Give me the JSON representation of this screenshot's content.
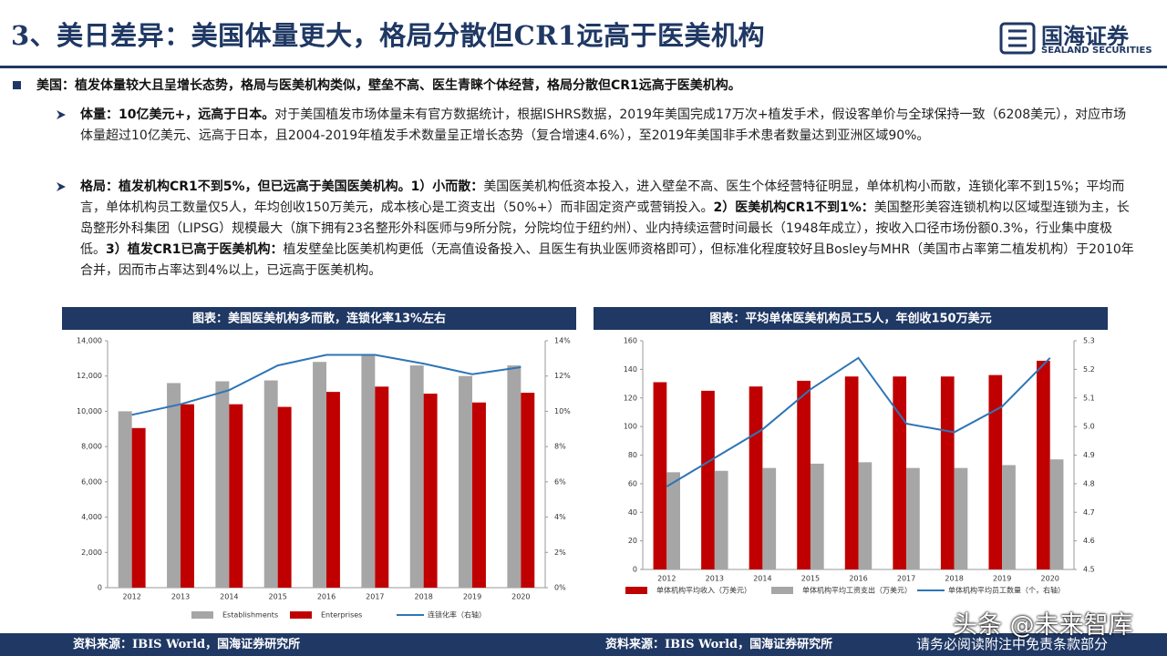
{
  "header": {
    "title": "3、美日差异：美国体量更大，格局分散但CR1远高于医美机构",
    "logo_name": "国海证券",
    "logo_sub": "SEALAND SECURITIES"
  },
  "bullets": [
    {
      "segments": [
        {
          "text": "美国：植发体量较大且呈增长态势，格局与医美机构类似，壁垒不高、医生青睐个体经营，格局分散但CR1远高于医美机构。",
          "bold": true
        }
      ]
    },
    {
      "segments": [
        {
          "text": "体量：10亿美元+，远高于日本。",
          "bold": true
        },
        {
          "text": "对于美国植发市场体量未有官方数据统计，根据ISHRS数据，2019年美国完成17万次+植发手术，假设客单价与全球保持一致（6208美元），对应市场体量超过10亿美元、远高于日本，且2004-2019年植发手术数量呈正增长态势（复合增速4.6%），至2019年美国非手术患者数量达到亚洲区域90%。",
          "bold": false
        }
      ]
    },
    {
      "segments": [
        {
          "text": "格局：植发机构CR1不到5%，但已远高于美国医美机构。1）小而散：",
          "bold": true
        },
        {
          "text": "美国医美机构低资本投入，进入壁垒不高、医生个体经营特征明显，单体机构小而散，连锁化率不到15%；平均而言，单体机构员工数量仅5人，年均创收150万美元，成本核心是工资支出（50%+）而非固定资产或营销投入。",
          "bold": false
        },
        {
          "text": "2）医美机构CR1不到1%：",
          "bold": true
        },
        {
          "text": "美国整形美容连锁机构以区域型连锁为主，长岛整形外科集团（LIPSG）规模最大（旗下拥有23名整形外科医师与9所分院，分院均位于纽约州）、业内持续运营时间最长（1948年成立），按收入口径市场份额0.3%，行业集中度极低。",
          "bold": false
        },
        {
          "text": "3）植发CR1已高于医美机构：",
          "bold": true
        },
        {
          "text": "植发壁垒比医美机构更低（无高值设备投入、且医生有执业医师资格即可），但标准化程度较好且Bosley与MHR（美国市占率第二植发机构）于2010年合并，因而市占率达到4%以上，已远高于医美机构。",
          "bold": false
        }
      ]
    }
  ],
  "chart_data": [
    {
      "type": "combo",
      "title": "图表：美国医美机构多而散，连锁化率13%左右",
      "categories": [
        "2012",
        "2013",
        "2014",
        "2015",
        "2016",
        "2017",
        "2018",
        "2019",
        "2020"
      ],
      "series": [
        {
          "name": "Establishments",
          "color": "#a6a6a6",
          "values": [
            10000,
            11600,
            11700,
            11750,
            12800,
            13200,
            12600,
            12000,
            12600
          ]
        },
        {
          "name": "Enterprises",
          "color": "#c00000",
          "values": [
            9050,
            10400,
            10400,
            10250,
            11100,
            11400,
            11000,
            10500,
            11050
          ]
        },
        {
          "name": "连锁化率（右轴）",
          "color": "#2e75b6",
          "axis": "y2",
          "values": [
            9.8,
            10.4,
            11.2,
            12.6,
            13.2,
            13.2,
            12.7,
            12.1,
            12.5
          ]
        }
      ],
      "ylim": [
        0,
        14000
      ],
      "yticks": [
        0,
        {
          "value": 2000,
          "label": "2,000"
        },
        {
          "value": 4000,
          "label": "4,000"
        },
        {
          "value": 6000,
          "label": "6,000"
        },
        {
          "value": 8000,
          "label": "8,000"
        },
        {
          "value": 10000,
          "label": "10,000"
        },
        {
          "value": 12000,
          "label": "12,000"
        },
        {
          "value": 14000,
          "label": "14,000"
        }
      ],
      "y2lim": [
        0,
        14
      ],
      "y2ticks": [
        {
          "value": 0,
          "label": "0%"
        },
        {
          "value": 2,
          "label": "2%"
        },
        {
          "value": 4,
          "label": "4%"
        },
        {
          "value": 6,
          "label": "6%"
        },
        {
          "value": 8,
          "label": "8%"
        },
        {
          "value": 10,
          "label": "10%"
        },
        {
          "value": 12,
          "label": "12%"
        },
        {
          "value": 14,
          "label": "14%"
        }
      ],
      "source": "资料来源：IBIS World，国海证券研究所"
    },
    {
      "type": "combo",
      "title": "图表：平均单体医美机构员工5人，年创收150万美元",
      "categories": [
        "2012",
        "2013",
        "2014",
        "2015",
        "2016",
        "2017",
        "2018",
        "2019",
        "2020"
      ],
      "series": [
        {
          "name": "单体机构平均收入（万美元）",
          "color": "#c00000",
          "values": [
            131,
            125,
            128,
            132,
            135,
            135,
            135,
            136,
            146
          ]
        },
        {
          "name": "单体机构平均工资支出（万美元）",
          "color": "#a6a6a6",
          "values": [
            68,
            69,
            71,
            74,
            75,
            71,
            71,
            73,
            77
          ]
        },
        {
          "name": "单体机构平均员工数量（个，右轴）",
          "color": "#2e75b6",
          "axis": "y2",
          "values": [
            4.79,
            4.89,
            4.99,
            5.13,
            5.24,
            5.01,
            4.98,
            5.07,
            5.24
          ]
        }
      ],
      "ylim": [
        0,
        160
      ],
      "yticks": [
        0,
        20,
        40,
        60,
        80,
        100,
        120,
        140,
        160
      ],
      "y2lim": [
        4.5,
        5.3
      ],
      "y2ticks": [
        4.5,
        4.6,
        4.7,
        4.8,
        4.9,
        {
          "value": 5,
          "label": "5.0"
        },
        5.1,
        5.2,
        5.3
      ],
      "source": "资料来源：IBIS World，国海证券研究所"
    }
  ],
  "footer": {
    "watermark": "头条 @未来智库",
    "disclaimer": "请务必阅读附注中免责条款部分"
  }
}
